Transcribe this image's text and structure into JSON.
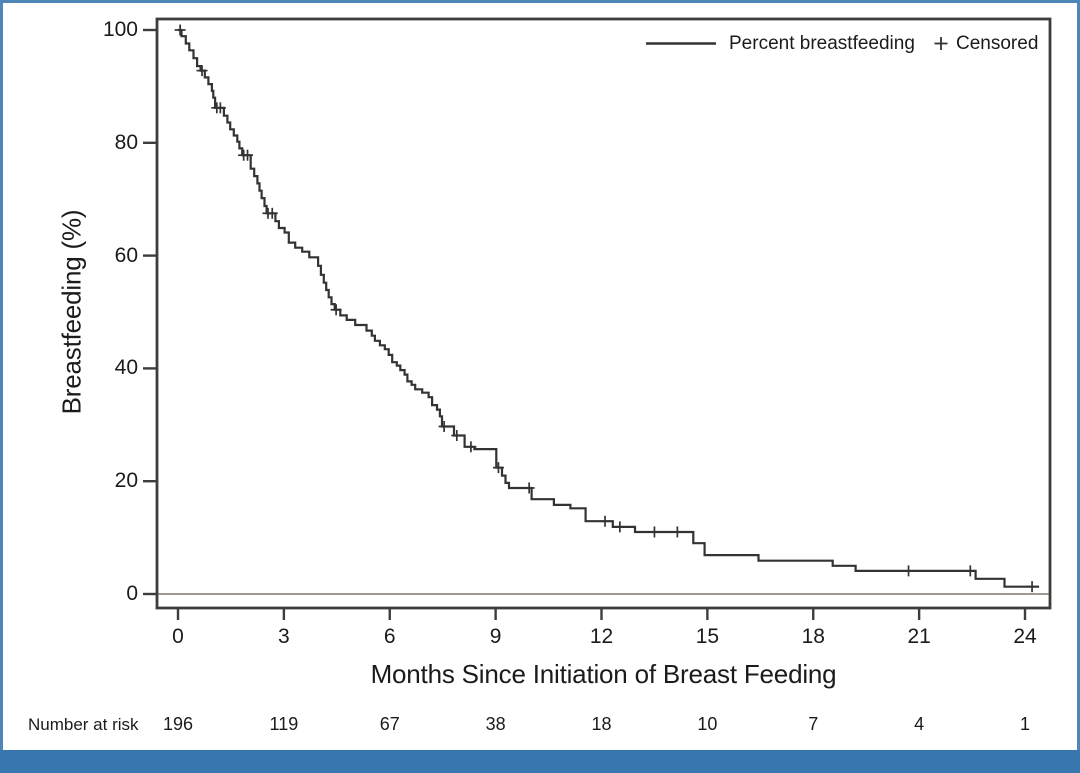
{
  "colors": {
    "curve": "#333333",
    "plot_border": "#3d3d3d",
    "zero_line": "#958a82",
    "text": "#1b1b1b",
    "frame_blue": "#4e86b8",
    "frame_bottom_bar": "#3877ad"
  },
  "chart_data": {
    "type": "line",
    "subtype": "kaplan-meier-step",
    "title": "",
    "xlabel": "Months Since Initiation of Breast Feeding",
    "ylabel": "Breastfeeding (%)",
    "x_ticks": [
      0,
      3,
      6,
      9,
      12,
      15,
      18,
      21,
      24
    ],
    "y_ticks": [
      0,
      20,
      40,
      60,
      80,
      100
    ],
    "xlim": [
      -0.6,
      24.7
    ],
    "ylim": [
      0,
      100
    ],
    "grid": false,
    "zero_reference_line": 0,
    "legend": {
      "position": "top-right",
      "series_label": "Percent breastfeeding",
      "censored_marker": "+",
      "censored_label": "Censored"
    },
    "series": [
      {
        "name": "Percent breastfeeding",
        "end_x": 24.4,
        "steps": [
          [
            0,
            100
          ],
          [
            0.1,
            98.9
          ],
          [
            0.22,
            97.6
          ],
          [
            0.32,
            96.4
          ],
          [
            0.44,
            95
          ],
          [
            0.54,
            93.6
          ],
          [
            0.64,
            92.8
          ],
          [
            0.76,
            91.6
          ],
          [
            0.86,
            90.4
          ],
          [
            0.96,
            89.2
          ],
          [
            1,
            88
          ],
          [
            1.05,
            86.2
          ],
          [
            1.3,
            84.8
          ],
          [
            1.4,
            83.6
          ],
          [
            1.48,
            82.4
          ],
          [
            1.58,
            81.3
          ],
          [
            1.68,
            80.2
          ],
          [
            1.74,
            79
          ],
          [
            1.82,
            77.8
          ],
          [
            2.06,
            75.4
          ],
          [
            2.16,
            74.1
          ],
          [
            2.25,
            72.8
          ],
          [
            2.31,
            71.5
          ],
          [
            2.37,
            70.2
          ],
          [
            2.45,
            68.8
          ],
          [
            2.51,
            67.5
          ],
          [
            2.76,
            66.1
          ],
          [
            2.86,
            64.9
          ],
          [
            3.02,
            64.1
          ],
          [
            3.14,
            62.3
          ],
          [
            3.32,
            61.4
          ],
          [
            3.52,
            60.7
          ],
          [
            3.72,
            59.7
          ],
          [
            3.97,
            58.2
          ],
          [
            4.05,
            56.6
          ],
          [
            4.13,
            55.2
          ],
          [
            4.2,
            53.9
          ],
          [
            4.27,
            52.6
          ],
          [
            4.35,
            51.4
          ],
          [
            4.44,
            50.4
          ],
          [
            4.6,
            49.4
          ],
          [
            4.78,
            48.6
          ],
          [
            5.02,
            47.7
          ],
          [
            5.34,
            46.7
          ],
          [
            5.49,
            45.8
          ],
          [
            5.58,
            44.9
          ],
          [
            5.72,
            44.1
          ],
          [
            5.86,
            43.4
          ],
          [
            5.97,
            42.4
          ],
          [
            6.07,
            41.1
          ],
          [
            6.2,
            40.5
          ],
          [
            6.3,
            39.7
          ],
          [
            6.42,
            38.9
          ],
          [
            6.5,
            37.7
          ],
          [
            6.62,
            37.1
          ],
          [
            6.72,
            36.3
          ],
          [
            6.92,
            35.7
          ],
          [
            7.1,
            34.9
          ],
          [
            7.2,
            33.5
          ],
          [
            7.34,
            32.7
          ],
          [
            7.42,
            31.5
          ],
          [
            7.48,
            29.7
          ],
          [
            7.82,
            28.1
          ],
          [
            8.12,
            26.1
          ],
          [
            8.4,
            25.7
          ],
          [
            9.02,
            22.4
          ],
          [
            9.18,
            21
          ],
          [
            9.28,
            19.7
          ],
          [
            9.38,
            18.8
          ],
          [
            10.02,
            16.8
          ],
          [
            10.65,
            15.8
          ],
          [
            11.12,
            15.2
          ],
          [
            11.55,
            12.9
          ],
          [
            12.32,
            11.9
          ],
          [
            12.95,
            11
          ],
          [
            14.6,
            9
          ],
          [
            14.92,
            6.9
          ],
          [
            16.45,
            5.9
          ],
          [
            18.55,
            5
          ],
          [
            19.2,
            4.1
          ],
          [
            22.6,
            2.7
          ],
          [
            23.42,
            1.3
          ]
        ]
      }
    ],
    "censored": [
      [
        0.06,
        100
      ],
      [
        0.68,
        92.8
      ],
      [
        1.1,
        86.2
      ],
      [
        1.2,
        86.2
      ],
      [
        1.86,
        77.8
      ],
      [
        1.97,
        77.8
      ],
      [
        2.55,
        67.5
      ],
      [
        2.67,
        67.5
      ],
      [
        4.48,
        50.4
      ],
      [
        7.54,
        29.7
      ],
      [
        7.9,
        28.1
      ],
      [
        8.3,
        26.1
      ],
      [
        9.08,
        22.4
      ],
      [
        9.95,
        18.8
      ],
      [
        12.1,
        12.9
      ],
      [
        12.52,
        11.9
      ],
      [
        13.5,
        11
      ],
      [
        14.15,
        11
      ],
      [
        20.7,
        4.1
      ],
      [
        22.45,
        4.1
      ],
      [
        24.2,
        1.3
      ]
    ],
    "number_at_risk": {
      "label": "Number at risk",
      "x": [
        0,
        3,
        6,
        9,
        12,
        15,
        18,
        21,
        24
      ],
      "values": [
        196,
        119,
        67,
        38,
        18,
        10,
        7,
        4,
        1
      ]
    }
  }
}
